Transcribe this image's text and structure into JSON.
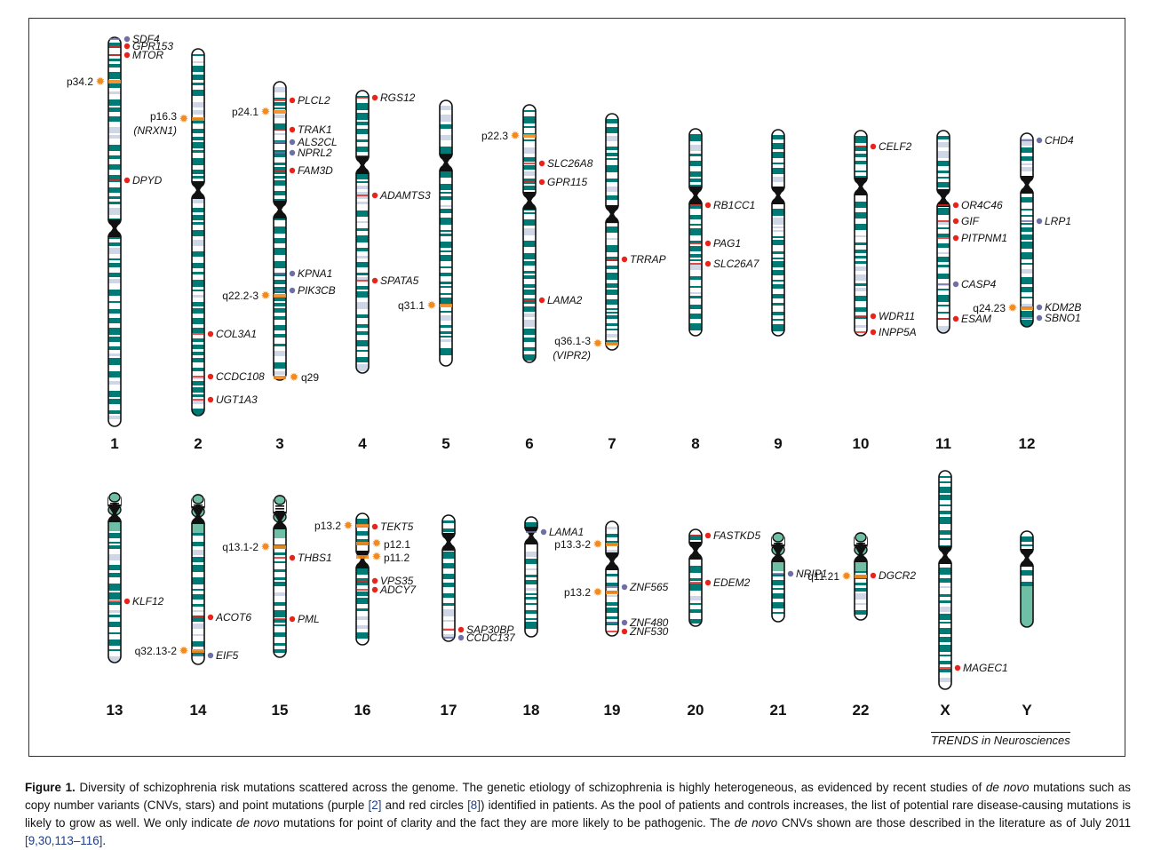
{
  "figure": {
    "journal": "TRENDS in Neurosciences",
    "caption_label": "Figure 1.",
    "caption_text_1": "Diversity of schizophrenia risk mutations scattered across the genome. The genetic etiology of schizophrenia is highly heterogeneous, as evidenced by recent studies of ",
    "caption_em_1": "de novo",
    "caption_text_2": " mutations such as copy number variants (CNVs, stars) and point mutations (purple ",
    "caption_ref_1": "[2]",
    "caption_text_3": " and red circles ",
    "caption_ref_2": "[8]",
    "caption_text_4": ") identified in patients. As the pool of patients and controls increases, the list of potential rare disease-causing mutations is likely to grow as well. We only indicate ",
    "caption_em_2": "de novo",
    "caption_text_5": " mutations for point of clarity and the fact they are more likely to be pathogenic. The ",
    "caption_em_3": "de novo",
    "caption_text_6": " CNVs shown are those described in the literature as of July 2011 ",
    "caption_ref_3": "[9,30,113–116]",
    "caption_text_7": "."
  },
  "colors": {
    "band": "#007a74",
    "acrocentric_p": "#6fbfa6",
    "centromere": "#111111",
    "red_marker": "#e8231b",
    "purple_marker": "#6f6fa8",
    "cnv_star": "#f28a1e"
  },
  "chromosomes": [
    {
      "name": "1",
      "genes": [
        {
          "label": "SDF4",
          "type": "purple"
        },
        {
          "label": "GPR153",
          "type": "red"
        },
        {
          "label": "MTOR",
          "type": "red"
        },
        {
          "label": "DPYD",
          "type": "red"
        }
      ],
      "cnvs": [
        {
          "label": "p34.2"
        }
      ]
    },
    {
      "name": "2",
      "genes": [
        {
          "label": "COL3A1",
          "type": "red"
        },
        {
          "label": "CCDC108",
          "type": "red"
        },
        {
          "label": "UGT1A3",
          "type": "red"
        }
      ],
      "cnvs": [
        {
          "label": "p16.3",
          "sublabel": "(NRXN1)"
        }
      ]
    },
    {
      "name": "3",
      "genes": [
        {
          "label": "PLCL2",
          "type": "red"
        },
        {
          "label": "TRAK1",
          "type": "red"
        },
        {
          "label": "ALS2CL",
          "type": "purple"
        },
        {
          "label": "NPRL2",
          "type": "purple"
        },
        {
          "label": "FAM3D",
          "type": "red"
        },
        {
          "label": "KPNA1",
          "type": "purple"
        },
        {
          "label": "PIK3CB",
          "type": "purple"
        }
      ],
      "cnvs": [
        {
          "label": "p24.1"
        },
        {
          "label": "q22.2-3"
        },
        {
          "label": "q29"
        }
      ]
    },
    {
      "name": "4",
      "genes": [
        {
          "label": "RGS12",
          "type": "red"
        },
        {
          "label": "ADAMTS3",
          "type": "red"
        },
        {
          "label": "SPATA5",
          "type": "red"
        }
      ],
      "cnvs": []
    },
    {
      "name": "5",
      "genes": [],
      "cnvs": [
        {
          "label": "q31.1"
        }
      ]
    },
    {
      "name": "6",
      "genes": [
        {
          "label": "SLC26A8",
          "type": "red"
        },
        {
          "label": "GPR115",
          "type": "red"
        },
        {
          "label": "LAMA2",
          "type": "red"
        }
      ],
      "cnvs": [
        {
          "label": "p22.3"
        }
      ]
    },
    {
      "name": "7",
      "genes": [
        {
          "label": "TRRAP",
          "type": "red"
        }
      ],
      "cnvs": [
        {
          "label": "q36.1-3",
          "sublabel": "(VIPR2)"
        }
      ]
    },
    {
      "name": "8",
      "genes": [
        {
          "label": "RB1CC1",
          "type": "red"
        },
        {
          "label": "PAG1",
          "type": "red"
        },
        {
          "label": "SLC26A7",
          "type": "red"
        }
      ],
      "cnvs": []
    },
    {
      "name": "9",
      "genes": [],
      "cnvs": []
    },
    {
      "name": "10",
      "genes": [
        {
          "label": "CELF2",
          "type": "red"
        },
        {
          "label": "WDR11",
          "type": "red"
        },
        {
          "label": "INPP5A",
          "type": "red"
        }
      ],
      "cnvs": []
    },
    {
      "name": "11",
      "genes": [
        {
          "label": "OR4C46",
          "type": "red"
        },
        {
          "label": "GIF",
          "type": "red"
        },
        {
          "label": "PITPNM1",
          "type": "red"
        },
        {
          "label": "CASP4",
          "type": "purple"
        },
        {
          "label": "ESAM",
          "type": "red"
        }
      ],
      "cnvs": []
    },
    {
      "name": "12",
      "genes": [
        {
          "label": "CHD4",
          "type": "purple"
        },
        {
          "label": "LRP1",
          "type": "purple"
        },
        {
          "label": "KDM2B",
          "type": "purple"
        },
        {
          "label": "SBNO1",
          "type": "purple"
        }
      ],
      "cnvs": [
        {
          "label": "q24.23"
        }
      ]
    },
    {
      "name": "13",
      "genes": [
        {
          "label": "KLF12",
          "type": "red"
        }
      ],
      "cnvs": []
    },
    {
      "name": "14",
      "genes": [
        {
          "label": "ACOT6",
          "type": "red"
        },
        {
          "label": "EIF5",
          "type": "purple"
        }
      ],
      "cnvs": [
        {
          "label": "q32.13-2"
        }
      ]
    },
    {
      "name": "15",
      "genes": [
        {
          "label": "THBS1",
          "type": "red"
        },
        {
          "label": "PML",
          "type": "red"
        }
      ],
      "cnvs": [
        {
          "label": "q13.1-2"
        }
      ]
    },
    {
      "name": "16",
      "genes": [
        {
          "label": "TEKT5",
          "type": "red"
        },
        {
          "label": "VPS35",
          "type": "red"
        },
        {
          "label": "ADCY7",
          "type": "red"
        }
      ],
      "cnvs": [
        {
          "label": "p13.2"
        },
        {
          "label": "p12.1"
        },
        {
          "label": "p11.2"
        }
      ]
    },
    {
      "name": "17",
      "genes": [
        {
          "label": "SAP30BP",
          "type": "red"
        },
        {
          "label": "CCDC137",
          "type": "purple"
        }
      ],
      "cnvs": []
    },
    {
      "name": "18",
      "genes": [
        {
          "label": "LAMA1",
          "type": "purple"
        }
      ],
      "cnvs": []
    },
    {
      "name": "19",
      "genes": [
        {
          "label": "ZNF565",
          "type": "purple"
        },
        {
          "label": "ZNF480",
          "type": "purple"
        },
        {
          "label": "ZNF530",
          "type": "red"
        }
      ],
      "cnvs": [
        {
          "label": "p13.3-2"
        },
        {
          "label": "p13.2"
        }
      ]
    },
    {
      "name": "20",
      "genes": [
        {
          "label": "FASTKD5",
          "type": "red"
        },
        {
          "label": "EDEM2",
          "type": "red"
        }
      ],
      "cnvs": []
    },
    {
      "name": "21",
      "genes": [
        {
          "label": "NRIP1",
          "type": "purple"
        }
      ],
      "cnvs": []
    },
    {
      "name": "22",
      "genes": [
        {
          "label": "DGCR2",
          "type": "red"
        }
      ],
      "cnvs": [
        {
          "label": "q11.21"
        }
      ]
    },
    {
      "name": "X",
      "genes": [
        {
          "label": "MAGEC1",
          "type": "red"
        }
      ],
      "cnvs": []
    },
    {
      "name": "Y",
      "genes": [],
      "cnvs": []
    }
  ]
}
